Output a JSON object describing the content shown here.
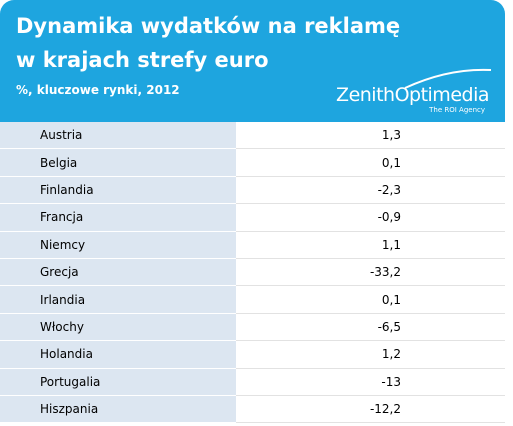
{
  "header": {
    "title_lines": [
      "Dynamika wydatków na reklamę",
      "w krajach strefy euro"
    ],
    "subtitle": "%, kluczowe rynki, 2012",
    "logo": "ZenithOptimedia",
    "logo_tagline": "The ROI Agency"
  },
  "table": {
    "rows": [
      [
        "Austria",
        "1,3"
      ],
      [
        "Belgia",
        "0,1"
      ],
      [
        "Finlandia",
        "-2,3"
      ],
      [
        "Francja",
        "-0,9"
      ],
      [
        "Niemcy",
        "1,1"
      ],
      [
        "Grecja",
        "-33,2"
      ],
      [
        "Irlandia",
        "0,1"
      ],
      [
        "Włochy",
        "-6,5"
      ],
      [
        "Holandia",
        "1,2"
      ],
      [
        "Portugalia",
        "-13"
      ],
      [
        "Hiszpania",
        "-12,2"
      ]
    ]
  }
}
